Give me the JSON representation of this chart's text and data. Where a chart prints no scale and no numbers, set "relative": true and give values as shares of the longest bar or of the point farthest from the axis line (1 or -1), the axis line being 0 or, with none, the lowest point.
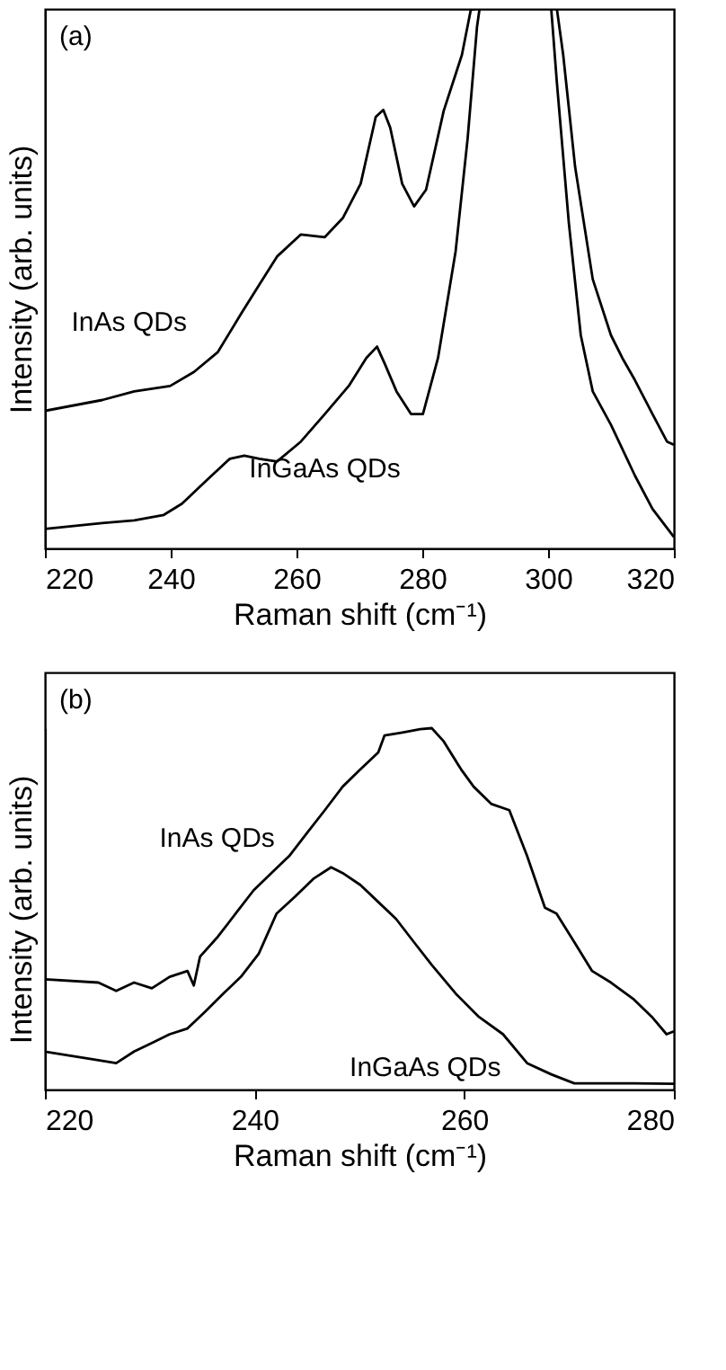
{
  "chart_data": [
    {
      "type": "line",
      "relative": true,
      "xlabel": "Raman shift (cm⁻¹)",
      "ylabel": "Intensity (arb. units)",
      "annotations": [
        "(a)"
      ],
      "xlim": [
        220,
        320
      ],
      "xticks": [
        220,
        240,
        260,
        280,
        300,
        320
      ],
      "grid": false,
      "series": [
        {
          "name": "InAs QDs",
          "color": "#000000",
          "x": [
            220,
            229.1,
            234.2,
            239.9,
            243.7,
            247.5,
            251.3,
            254.1,
            256.9,
            260.7,
            264.5,
            267.4,
            270.2,
            272.6,
            273.8,
            274.9,
            276.8,
            278.7,
            280.6,
            283.4,
            286.3,
            287.7,
            288.4,
            295,
            301.4,
            302.4,
            304.3,
            307.1,
            310.0,
            311.8,
            313.8,
            316.6,
            318.9,
            320
          ],
          "values": [
            0.255,
            0.275,
            0.291,
            0.301,
            0.327,
            0.364,
            0.437,
            0.489,
            0.541,
            0.582,
            0.577,
            0.613,
            0.676,
            0.8,
            0.813,
            0.78,
            0.676,
            0.634,
            0.665,
            0.811,
            0.915,
            0.998,
            1.0,
            null,
            1.0,
            0.915,
            0.707,
            0.499,
            0.395,
            0.353,
            0.312,
            0.249,
            0.198,
            0.192
          ]
        },
        {
          "name": "InGaAs QDs",
          "color": "#000000",
          "x": [
            220,
            229.1,
            234.2,
            238.9,
            241.8,
            245.6,
            249.4,
            251.7,
            254.1,
            256.9,
            260.7,
            264.5,
            268.3,
            271.1,
            272.8,
            274.0,
            275.9,
            278.2,
            280.1,
            282.5,
            285.3,
            287.2,
            288.7,
            289.1,
            295,
            300.5,
            301.4,
            303.3,
            305.2,
            307.1,
            310.0,
            313.8,
            316.6,
            320
          ],
          "values": [
            0.036,
            0.047,
            0.052,
            0.062,
            0.083,
            0.125,
            0.166,
            0.172,
            0.166,
            0.161,
            0.198,
            0.249,
            0.301,
            0.353,
            0.374,
            0.343,
            0.291,
            0.249,
            0.249,
            0.353,
            0.551,
            0.759,
            0.967,
            1.0,
            null,
            1.0,
            0.863,
            0.603,
            0.395,
            0.291,
            0.229,
            0.135,
            0.073,
            0.021
          ]
        }
      ]
    },
    {
      "type": "line",
      "relative": true,
      "xlabel": "Raman shift (cm⁻¹)",
      "ylabel": "Intensity (arb. units)",
      "annotations": [
        "(b)"
      ],
      "xlim": [
        220,
        280
      ],
      "xticks": [
        220,
        240,
        260,
        280
      ],
      "grid": false,
      "series": [
        {
          "name": "InAs QDs",
          "color": "#000000",
          "x": [
            220,
            225.1,
            226.8,
            228.5,
            230.2,
            231.9,
            233.6,
            234.2,
            234.8,
            236.5,
            238.2,
            239.9,
            241.6,
            243.3,
            245.0,
            246.7,
            248.4,
            250.1,
            251.8,
            252.4,
            254.1,
            255.8,
            256.9,
            258.0,
            259.7,
            260.9,
            262.6,
            264.3,
            266.0,
            267.7,
            268.8,
            270.5,
            272.2,
            274.0,
            276.2,
            277.9,
            279.3,
            280
          ],
          "values": [
            0.305,
            0.296,
            0.273,
            0.296,
            0.28,
            0.312,
            0.328,
            0.288,
            0.368,
            0.423,
            0.487,
            0.551,
            0.599,
            0.646,
            0.71,
            0.773,
            0.838,
            0.886,
            0.933,
            0.98,
            0.988,
            0.997,
            1.0,
            0.965,
            0.886,
            0.838,
            0.79,
            0.773,
            0.646,
            0.503,
            0.487,
            0.408,
            0.328,
            0.296,
            0.249,
            0.201,
            0.153,
            0.161
          ]
        },
        {
          "name": "InGaAs QDs",
          "color": "#000000",
          "x": [
            220,
            225.1,
            226.8,
            228.5,
            230.2,
            231.9,
            233.6,
            235.3,
            237.0,
            238.7,
            240.4,
            242.1,
            243.9,
            245.6,
            247.3,
            248.4,
            250.1,
            251.8,
            253.5,
            255.2,
            256.9,
            259.2,
            261.4,
            263.7,
            266.0,
            268.3,
            270.5,
            273.4,
            276.2,
            280
          ],
          "values": [
            0.105,
            0.081,
            0.073,
            0.105,
            0.129,
            0.153,
            0.169,
            0.216,
            0.265,
            0.312,
            0.376,
            0.487,
            0.535,
            0.583,
            0.615,
            0.599,
            0.566,
            0.519,
            0.472,
            0.408,
            0.345,
            0.265,
            0.201,
            0.153,
            0.073,
            0.042,
            0.017,
            0.017,
            0.017,
            0.016
          ]
        }
      ]
    }
  ]
}
